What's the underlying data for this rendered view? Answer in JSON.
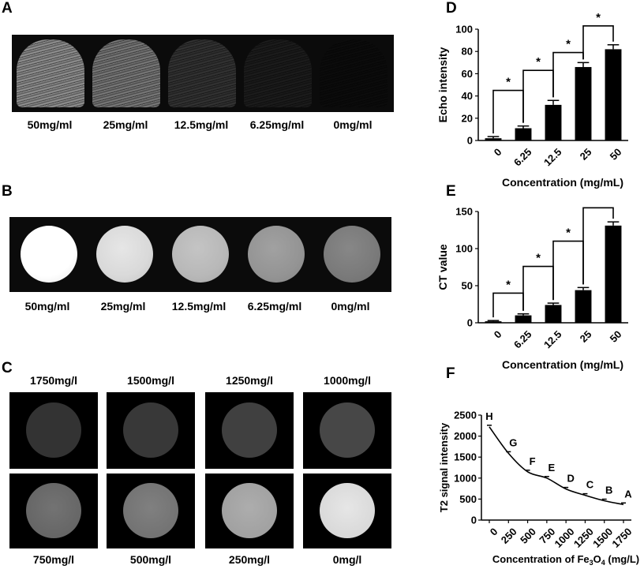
{
  "panels": {
    "A": {
      "letter": "A",
      "labels": [
        "50mg/ml",
        "25mg/ml",
        "12.5mg/ml",
        "6.25mg/ml",
        "0mg/ml"
      ],
      "brightness": [
        0.62,
        0.52,
        0.22,
        0.12,
        0.05
      ]
    },
    "B": {
      "letter": "B",
      "labels": [
        "50mg/ml",
        "25mg/ml",
        "12.5mg/ml",
        "6.25mg/ml",
        "0mg/ml"
      ],
      "brightness": [
        1.0,
        0.85,
        0.72,
        0.58,
        0.48
      ]
    },
    "C": {
      "letter": "C",
      "top_labels": [
        "1750mg/l",
        "1500mg/l",
        "1250mg/l",
        "1000mg/l"
      ],
      "bottom_labels": [
        "750mg/l",
        "500mg/l",
        "250mg/l",
        "0mg/l"
      ],
      "top_brightness": [
        0.2,
        0.22,
        0.25,
        0.28
      ],
      "bottom_brightness": [
        0.4,
        0.45,
        0.63,
        0.85
      ]
    },
    "D": {
      "letter": "D"
    },
    "E": {
      "letter": "E"
    },
    "F": {
      "letter": "F"
    }
  },
  "colors": {
    "bar": "#000000",
    "line": "#000000",
    "background": "#ffffff"
  },
  "chart_data": [
    {
      "id": "D",
      "type": "bar",
      "categories": [
        "0",
        "6.25",
        "12.5",
        "25",
        "50"
      ],
      "values": [
        2,
        11,
        32,
        66,
        82
      ],
      "errors": [
        1.5,
        2,
        4,
        4,
        4
      ],
      "xlabel": "Concentration  (mg/mL)",
      "ylabel": "Echo intensity",
      "ylim": [
        0,
        100
      ],
      "yticks": [
        "0",
        "20",
        "40",
        "60",
        "80",
        "100"
      ],
      "significance": [
        "*",
        "*",
        "*",
        "*"
      ]
    },
    {
      "id": "E",
      "type": "bar",
      "categories": [
        "0",
        "6.25",
        "12.5",
        "25",
        "50"
      ],
      "values": [
        2,
        10,
        24,
        44,
        131
      ],
      "errors": [
        1,
        2,
        2.5,
        3.5,
        5
      ],
      "xlabel": "Concentration (mg/mL)",
      "ylabel": "CT value",
      "ylim": [
        0,
        150
      ],
      "yticks": [
        "0",
        "50",
        "100",
        "150"
      ],
      "significance": [
        "*",
        "*",
        "*",
        "*"
      ]
    },
    {
      "id": "F",
      "type": "line",
      "x": [
        0,
        250,
        500,
        750,
        1000,
        1250,
        1500,
        1750
      ],
      "y": [
        2220,
        1590,
        1150,
        1000,
        740,
        590,
        460,
        370
      ],
      "point_labels": [
        "H",
        "G",
        "F",
        "E",
        "D",
        "C",
        "B",
        "A"
      ],
      "xticks": [
        "0",
        "250",
        "500",
        "750",
        "1000",
        "1250",
        "1500",
        "1750"
      ],
      "yticks": [
        "0",
        "500",
        "1000",
        "1500",
        "2000",
        "2500"
      ],
      "xlabel_main": "Concentration of Fe",
      "xlabel_sub1": "3",
      "xlabel_mid": "O",
      "xlabel_sub2": "4",
      "xlabel_unit": " (mg/L)",
      "ylabel": "T2 signal intensity",
      "xlim": [
        0,
        1750
      ],
      "ylim": [
        0,
        2500
      ]
    }
  ]
}
